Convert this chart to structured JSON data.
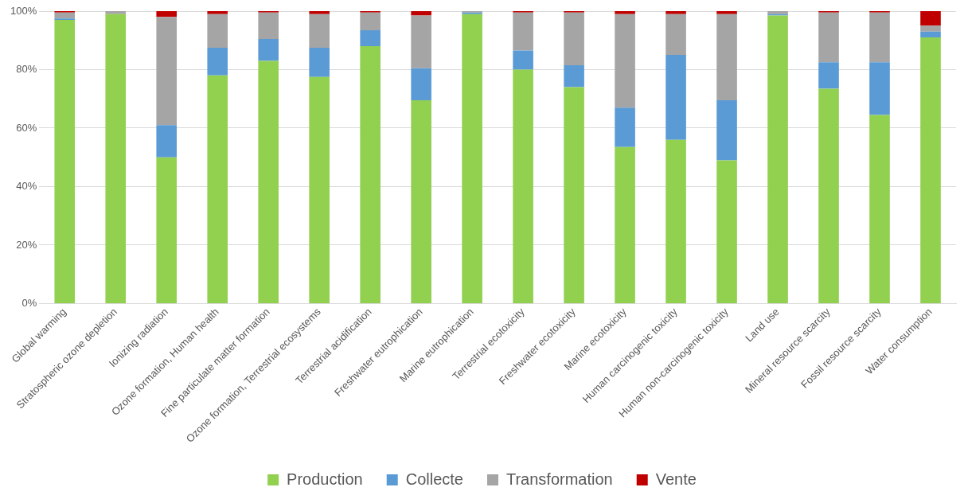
{
  "chart_data": {
    "type": "bar",
    "stacked": true,
    "categories": [
      "Global warming",
      "Stratospheric ozone depletion",
      "Ionizing radiation",
      "Ozone formation, Human health",
      "Fine particulate matter formation",
      "Ozone formation, Terrestrial ecosystems",
      "Terrestrial acidification",
      "Freshwater eutrophication",
      "Marine eutrophication",
      "Terrestrial ecotoxicity",
      "Freshwater ecotoxicity",
      "Marine ecotoxicity",
      "Human carcinogenic toxicity",
      "Human non-carcinogenic toxicity",
      "Land use",
      "Mineral resource scarcity",
      "Fossil resource scarcity",
      "Water consumption"
    ],
    "series": [
      {
        "name": "Production",
        "color": "#92d050",
        "values": [
          97,
          99,
          50,
          78,
          83,
          77.5,
          88,
          69.5,
          99,
          80,
          74,
          53.5,
          56,
          49,
          98.5,
          73.5,
          64.5,
          91
        ]
      },
      {
        "name": "Collecte",
        "color": "#5b9bd5",
        "values": [
          0.5,
          0,
          11,
          9.5,
          7.5,
          10,
          5.5,
          11,
          0.5,
          6.5,
          7.5,
          13.5,
          29,
          20.5,
          0.5,
          9,
          18,
          2
        ]
      },
      {
        "name": "Transformation",
        "color": "#a5a5a5",
        "values": [
          2,
          1,
          37,
          11.5,
          9,
          11.5,
          6,
          18,
          0.5,
          13,
          18,
          32,
          14,
          29.5,
          1,
          17,
          17,
          2
        ]
      },
      {
        "name": "Vente",
        "color": "#c00000",
        "values": [
          0.5,
          0,
          2,
          1,
          0.5,
          1,
          0.5,
          1.5,
          0,
          0.5,
          0.5,
          1,
          1,
          1,
          0,
          0.5,
          0.5,
          5
        ]
      }
    ],
    "ylim": [
      0,
      100
    ],
    "yticks": [
      {
        "value": 0,
        "label": "0%"
      },
      {
        "value": 20,
        "label": "20%"
      },
      {
        "value": 40,
        "label": "40%"
      },
      {
        "value": 60,
        "label": "60%"
      },
      {
        "value": 80,
        "label": "80%"
      },
      {
        "value": 100,
        "label": "100%"
      }
    ],
    "grid": "y",
    "legend": "bottom"
  }
}
